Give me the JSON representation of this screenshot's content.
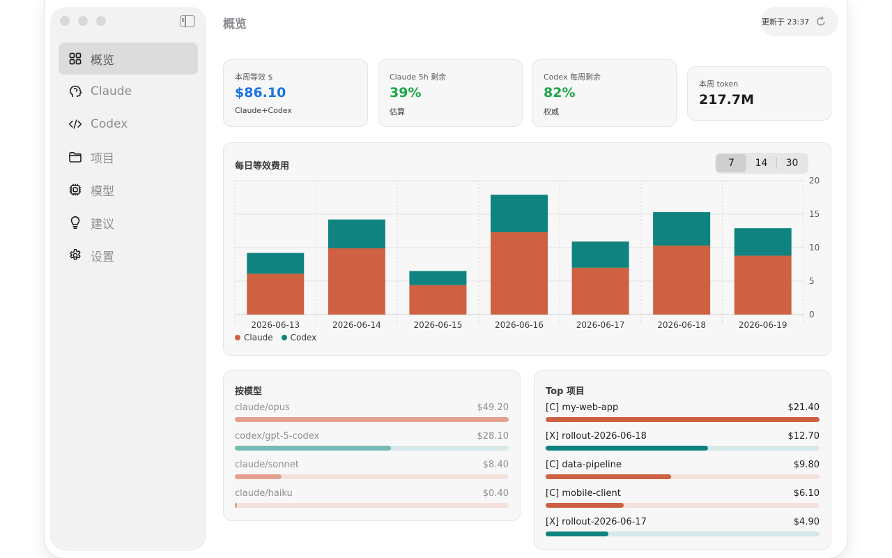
{
  "app": {
    "title": "概览"
  },
  "sidebar": {
    "items": [
      {
        "label": "概览",
        "icon": "grid-icon",
        "active": true
      },
      {
        "label": "Claude",
        "icon": "head-icon",
        "active": false
      },
      {
        "label": "Codex",
        "icon": "code-icon",
        "active": false
      },
      {
        "label": "项目",
        "icon": "folder-icon",
        "active": false
      },
      {
        "label": "模型",
        "icon": "chip-icon",
        "active": false
      },
      {
        "label": "建议",
        "icon": "lightbulb-icon",
        "active": false
      },
      {
        "label": "设置",
        "icon": "gear-icon",
        "active": false
      }
    ]
  },
  "header": {
    "updated_label": "更新于 23:37"
  },
  "stats": [
    {
      "label": "本周等效 $",
      "value": "$86.10",
      "sub": "Claude+Codex",
      "color": "#1a73e8"
    },
    {
      "label": "Claude 5h 剩余",
      "value": "39%",
      "sub": "估算",
      "color": "#1fa64a"
    },
    {
      "label": "Codex 每周剩余",
      "value": "82%",
      "sub": "权威",
      "color": "#1fa64a"
    },
    {
      "label": "本周 token",
      "value": "217.7M",
      "sub": "",
      "color": "#1d1d1f"
    }
  ],
  "chart": {
    "title": "每日等效费用",
    "range_options": [
      "7",
      "14",
      "30"
    ],
    "range_selected": "7"
  },
  "chart_data": {
    "type": "bar",
    "stacked": true,
    "categories": [
      "2026-06-13",
      "2026-06-14",
      "2026-06-15",
      "2026-06-16",
      "2026-06-17",
      "2026-06-18",
      "2026-06-19"
    ],
    "series": [
      {
        "name": "Claude",
        "color": "#cd6142",
        "values": [
          6.1,
          9.9,
          4.4,
          12.3,
          7.0,
          10.3,
          8.8
        ]
      },
      {
        "name": "Codex",
        "color": "#0f8380",
        "values": [
          3.1,
          4.3,
          2.1,
          5.6,
          3.9,
          5.0,
          4.1
        ]
      }
    ],
    "ylim": [
      0,
      20
    ],
    "yticks": [
      0,
      5,
      10,
      15,
      20
    ],
    "y_axis_side": "right",
    "grid": true,
    "legend_position": "bottom-left"
  },
  "by_model": {
    "title": "按模型",
    "rows": [
      {
        "name": "claude/opus",
        "value": "$49.20",
        "fraction": 1.0,
        "kind": "claude"
      },
      {
        "name": "codex/gpt-5-codex",
        "value": "$28.10",
        "fraction": 0.571,
        "kind": "codex"
      },
      {
        "name": "claude/sonnet",
        "value": "$8.40",
        "fraction": 0.171,
        "kind": "claude"
      },
      {
        "name": "claude/haiku",
        "value": "$0.40",
        "fraction": 0.008,
        "kind": "claude"
      }
    ]
  },
  "top_projects": {
    "title": "Top 项目",
    "rows": [
      {
        "name": "[C] my-web-app",
        "value": "$21.40",
        "fraction": 1.0,
        "kind": "claude"
      },
      {
        "name": "[X] rollout-2026-06-18",
        "value": "$12.70",
        "fraction": 0.593,
        "kind": "codex"
      },
      {
        "name": "[C] data-pipeline",
        "value": "$9.80",
        "fraction": 0.458,
        "kind": "claude"
      },
      {
        "name": "[C] mobile-client",
        "value": "$6.10",
        "fraction": 0.285,
        "kind": "claude"
      },
      {
        "name": "[X] rollout-2026-06-17",
        "value": "$4.90",
        "fraction": 0.229,
        "kind": "codex"
      }
    ]
  },
  "colors": {
    "claude": "#cd6142",
    "codex": "#0f8380",
    "claude_soft": "#e4a090",
    "codex_soft": "#76b9b5",
    "claude_track": "#f5e1db",
    "codex_track": "#d6e8e7"
  }
}
